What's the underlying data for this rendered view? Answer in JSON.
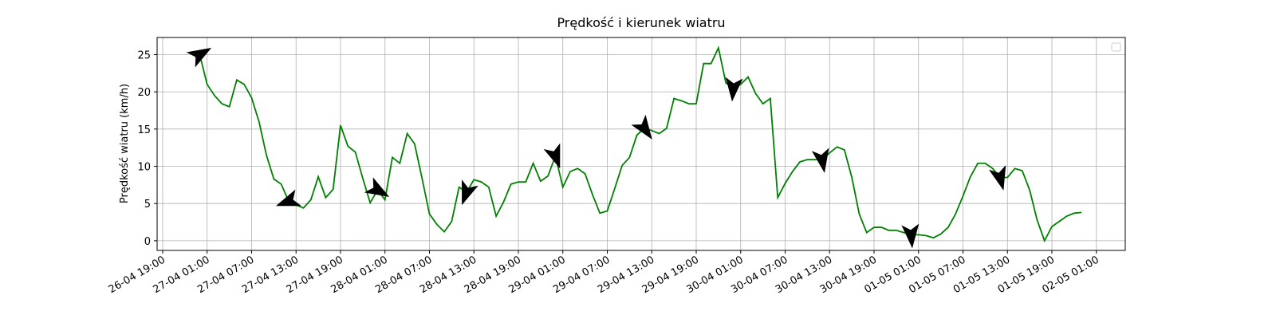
{
  "chart_data": {
    "type": "line",
    "title": "Prędkość i kierunek wiatru",
    "y_label": "Prędkość wiatru (km/h)",
    "color": "#008000",
    "grid": true,
    "legend": "upper right",
    "x": [
      "27-04 00:00",
      "27-04 01:00",
      "27-04 02:00",
      "27-04 03:00",
      "27-04 04:00",
      "27-04 05:00",
      "27-04 06:00",
      "27-04 07:00",
      "27-04 08:00",
      "27-04 09:00",
      "27-04 10:00",
      "27-04 11:00",
      "27-04 12:00",
      "27-04 13:00",
      "27-04 14:00",
      "27-04 15:00",
      "27-04 16:00",
      "27-04 17:00",
      "27-04 18:00",
      "27-04 19:00",
      "27-04 20:00",
      "27-04 21:00",
      "27-04 22:00",
      "27-04 23:00",
      "28-04 00:00",
      "28-04 01:00",
      "28-04 02:00",
      "28-04 03:00",
      "28-04 04:00",
      "28-04 05:00",
      "28-04 06:00",
      "28-04 07:00",
      "28-04 08:00",
      "28-04 09:00",
      "28-04 10:00",
      "28-04 11:00",
      "28-04 12:00",
      "28-04 13:00",
      "28-04 14:00",
      "28-04 15:00",
      "28-04 16:00",
      "28-04 17:00",
      "28-04 18:00",
      "28-04 19:00",
      "28-04 20:00",
      "28-04 21:00",
      "28-04 22:00",
      "28-04 23:00",
      "29-04 00:00",
      "29-04 01:00",
      "29-04 02:00",
      "29-04 03:00",
      "29-04 04:00",
      "29-04 05:00",
      "29-04 06:00",
      "29-04 07:00",
      "29-04 08:00",
      "29-04 09:00",
      "29-04 10:00",
      "29-04 11:00",
      "29-04 12:00",
      "29-04 13:00",
      "29-04 14:00",
      "29-04 15:00",
      "29-04 16:00",
      "29-04 17:00",
      "29-04 18:00",
      "29-04 19:00",
      "29-04 20:00",
      "29-04 21:00",
      "29-04 22:00",
      "29-04 23:00",
      "30-04 00:00",
      "30-04 01:00",
      "30-04 02:00",
      "30-04 03:00",
      "30-04 04:00",
      "30-04 05:00",
      "30-04 06:00",
      "30-04 07:00",
      "30-04 08:00",
      "30-04 09:00",
      "30-04 10:00",
      "30-04 11:00",
      "30-04 12:00",
      "30-04 13:00",
      "30-04 14:00",
      "30-04 15:00",
      "30-04 16:00",
      "30-04 17:00",
      "30-04 18:00",
      "30-04 19:00",
      "30-04 20:00",
      "30-04 21:00",
      "30-04 22:00",
      "30-04 23:00",
      "01-05 00:00",
      "01-05 01:00",
      "01-05 02:00",
      "01-05 03:00",
      "01-05 04:00",
      "01-05 05:00",
      "01-05 06:00",
      "01-05 07:00",
      "01-05 08:00",
      "01-05 09:00",
      "01-05 10:00",
      "01-05 11:00",
      "01-05 12:00",
      "01-05 13:00",
      "01-05 14:00",
      "01-05 15:00",
      "01-05 16:00",
      "01-05 17:00",
      "01-05 18:00",
      "01-05 19:00",
      "01-05 20:00",
      "01-05 21:00",
      "01-05 22:00",
      "01-05 23:00"
    ],
    "values": [
      25,
      21,
      19.5,
      18.4,
      18,
      21.6,
      21,
      19.2,
      16,
      11.5,
      8.3,
      7.6,
      5.3,
      4.8,
      4.4,
      5.5,
      8.6,
      5.8,
      6.9,
      15.5,
      12.7,
      11.9,
      8.4,
      5.1,
      6.8,
      5.5,
      11.2,
      10.4,
      14.4,
      13,
      8.4,
      3.6,
      2.2,
      1.2,
      2.6,
      7.2,
      6.5,
      8.2,
      7.9,
      7.2,
      3.3,
      5.2,
      7.6,
      7.9,
      7.9,
      10.4,
      8,
      8.7,
      11.4,
      7.2,
      9.3,
      9.7,
      9,
      6.2,
      3.7,
      4,
      7,
      10.1,
      11.2,
      14.2,
      15.1,
      14.8,
      14.4,
      15.1,
      19.1,
      18.8,
      18.4,
      18.4,
      23.8,
      23.8,
      25.9,
      21.2,
      20.5,
      21,
      22,
      19.8,
      18.4,
      19.1,
      5.8,
      7.7,
      9.3,
      10.6,
      10.9,
      10.9,
      10.9,
      11.8,
      12.6,
      12.2,
      8.5,
      3.6,
      1.1,
      1.8,
      1.8,
      1.4,
      1.4,
      1.1,
      0.8,
      0.8,
      0.7,
      0.4,
      0.9,
      1.8,
      3.6,
      6,
      8.6,
      10.4,
      10.4,
      9.7,
      8.5,
      8.5,
      9.7,
      9.4,
      6.8,
      2.8,
      0,
      1.9,
      2.6,
      3.3,
      3.7,
      3.8
    ],
    "arrows": {
      "x": [
        "27-04 00:00",
        "27-04 12:00",
        "28-04 00:00",
        "28-04 12:00",
        "29-04 00:00",
        "29-04 12:00",
        "30-04 00:00",
        "30-04 12:00",
        "01-05 00:00",
        "01-05 12:00"
      ],
      "directions": [
        60,
        250,
        120,
        200,
        160,
        145,
        185,
        170,
        175,
        165
      ]
    },
    "xlim": [
      "26-04 18:15",
      "02-05 04:54"
    ],
    "xticks": [
      "26-04 19:00",
      "27-04 01:00",
      "27-04 07:00",
      "27-04 13:00",
      "27-04 19:00",
      "28-04 01:00",
      "28-04 07:00",
      "28-04 13:00",
      "28-04 19:00",
      "29-04 01:00",
      "29-04 07:00",
      "29-04 13:00",
      "29-04 19:00",
      "30-04 01:00",
      "30-04 07:00",
      "30-04 13:00",
      "30-04 19:00",
      "01-05 01:00",
      "01-05 07:00",
      "01-05 13:00",
      "01-05 19:00",
      "02-05 01:00"
    ],
    "ylim": [
      -1.3,
      27.3
    ],
    "yticks": [
      0,
      5,
      10,
      15,
      20,
      25
    ]
  }
}
